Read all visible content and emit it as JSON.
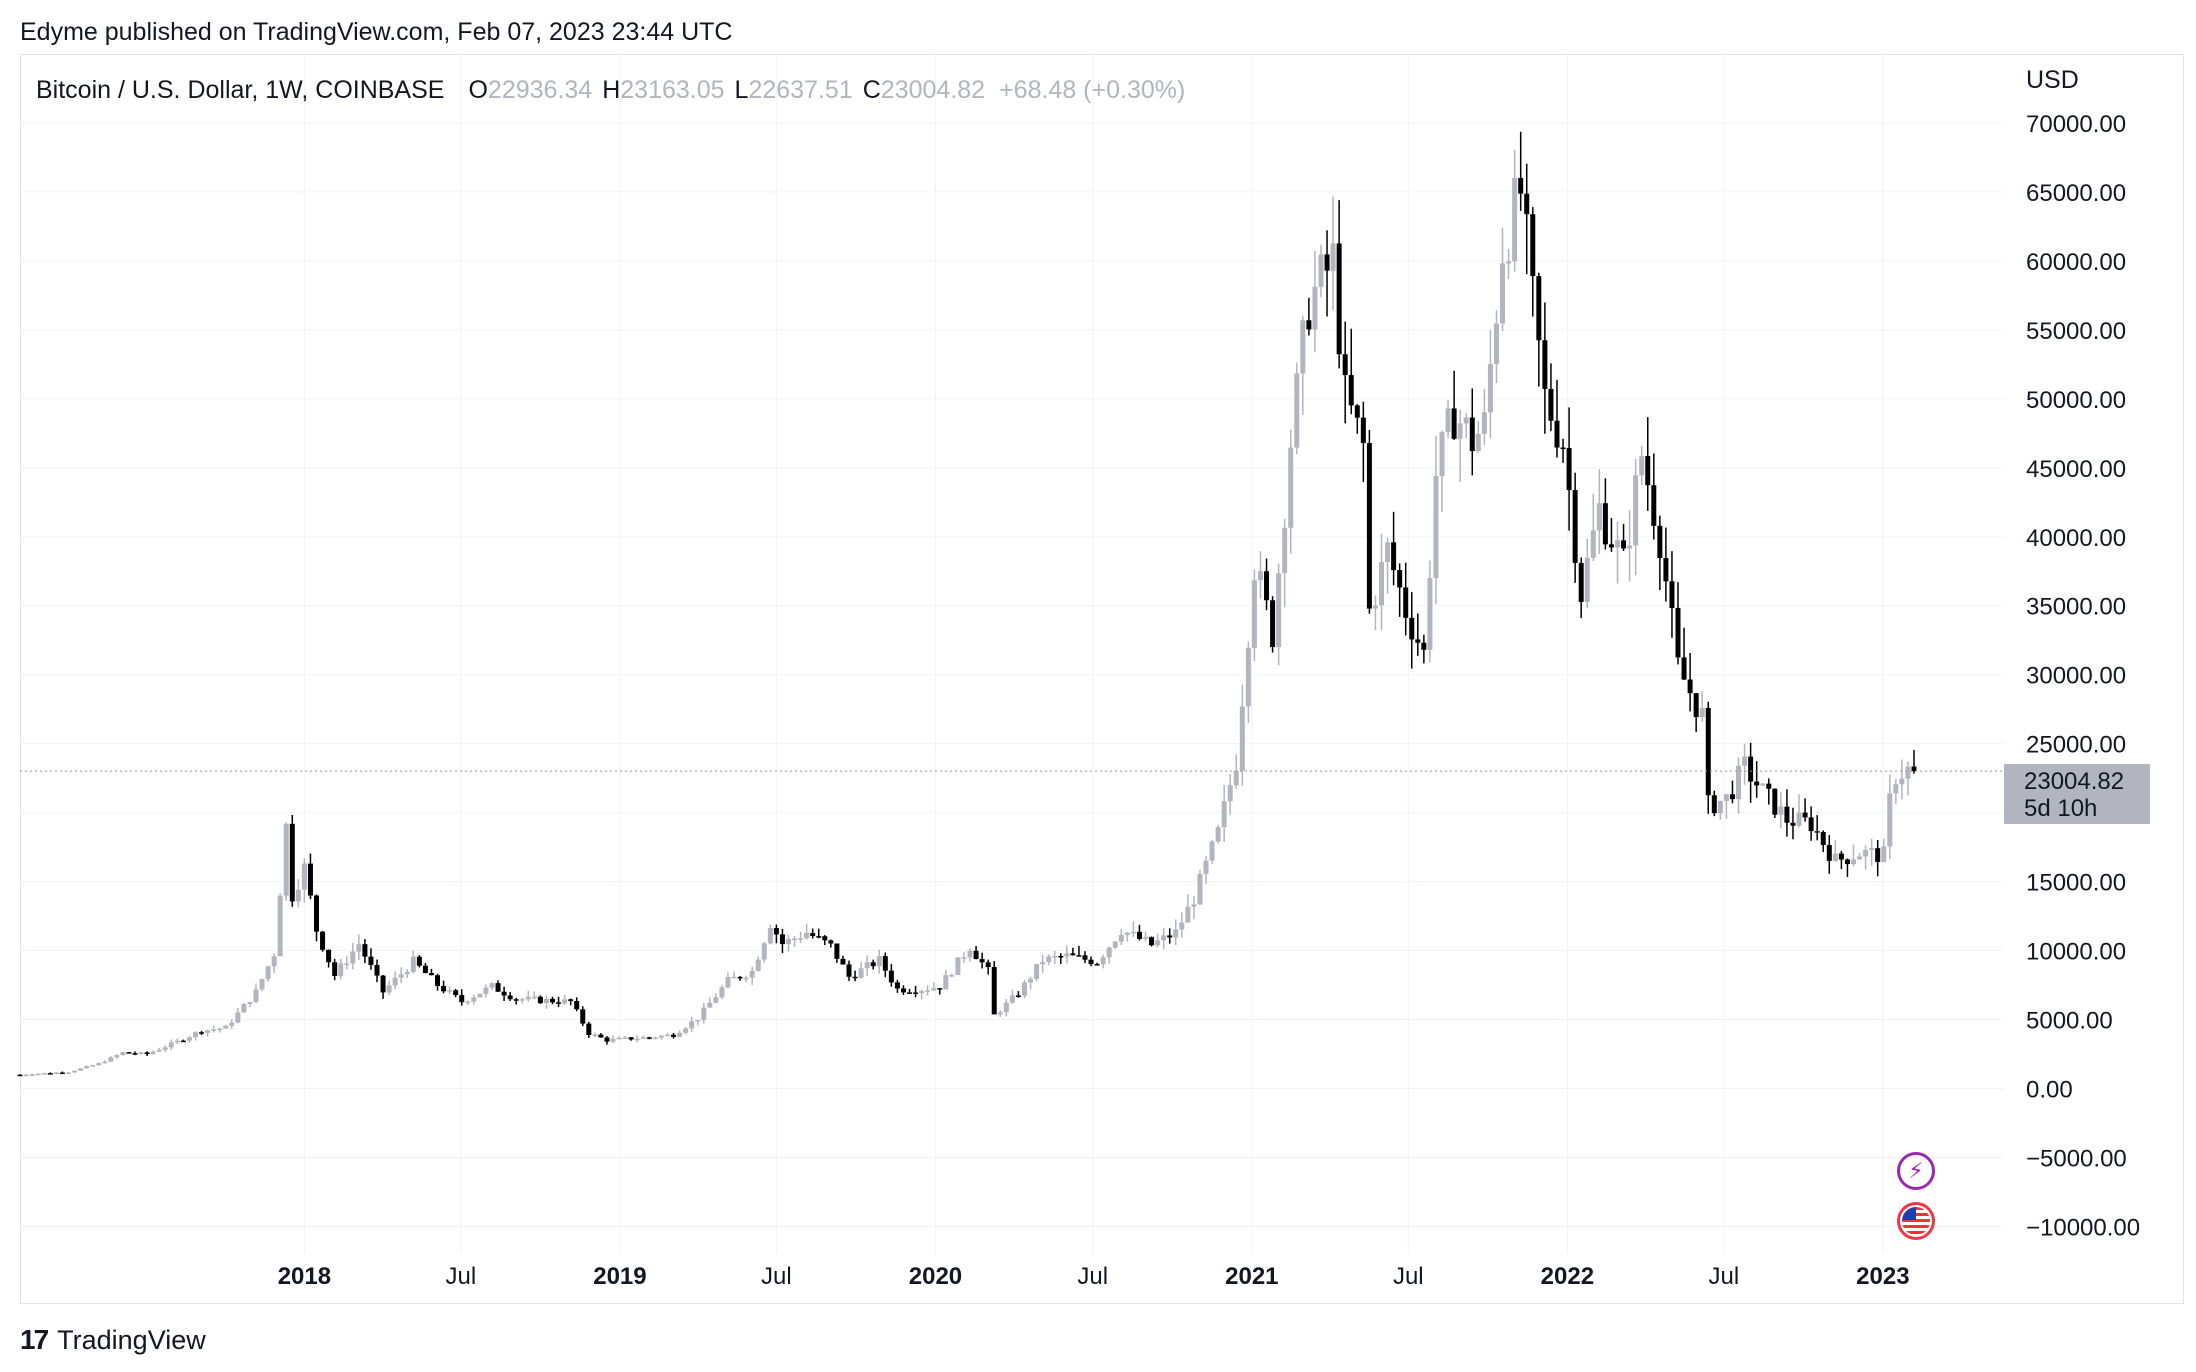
{
  "header": {
    "published_text": "Edyme published on TradingView.com, Feb 07, 2023 23:44 UTC"
  },
  "legend": {
    "symbol": "Bitcoin / U.S. Dollar, 1W, COINBASE",
    "open_label": "O",
    "open_value": "22936.34",
    "high_label": "H",
    "high_value": "23163.05",
    "low_label": "L",
    "low_value": "22637.51",
    "close_label": "C",
    "close_value": "23004.82",
    "change": "+68.48 (+0.30%)"
  },
  "price_scale": {
    "currency": "USD",
    "last_price_tag": "23004.82",
    "countdown_tag": "5d 10h"
  },
  "icons": {
    "lightning": "lightning-icon",
    "flag": "us-flag-icon"
  },
  "colors": {
    "up_candle": "#b2b5be",
    "down_candle": "#000000",
    "grid": "#f0f3fa",
    "price_tag_bg": "#b2b5be"
  },
  "footer": {
    "brand": "TradingView",
    "logo_text": "17"
  },
  "chart_data": {
    "type": "candlestick",
    "title": "Bitcoin / U.S. Dollar, 1W, COINBASE",
    "xlabel": "",
    "ylabel": "USD",
    "ylim": [
      -12000,
      75000
    ],
    "y_ticks": [
      "70000.00",
      "65000.00",
      "60000.00",
      "55000.00",
      "50000.00",
      "45000.00",
      "40000.00",
      "35000.00",
      "30000.00",
      "25000.00",
      "20000.00",
      "15000.00",
      "10000.00",
      "5000.00",
      "0.00",
      "−5000.00",
      "−10000.00"
    ],
    "y_tick_values": [
      70000,
      65000,
      60000,
      55000,
      50000,
      45000,
      40000,
      35000,
      30000,
      25000,
      20000,
      15000,
      10000,
      5000,
      0,
      -5000,
      -10000
    ],
    "x_ticks": [
      {
        "label": "2018",
        "date": "2018-01-01",
        "bold": true
      },
      {
        "label": "Jul",
        "date": "2018-07-01",
        "bold": false
      },
      {
        "label": "2019",
        "date": "2019-01-01",
        "bold": true
      },
      {
        "label": "Jul",
        "date": "2019-07-01",
        "bold": false
      },
      {
        "label": "2020",
        "date": "2020-01-01",
        "bold": true
      },
      {
        "label": "Jul",
        "date": "2020-07-01",
        "bold": false
      },
      {
        "label": "2021",
        "date": "2021-01-01",
        "bold": true
      },
      {
        "label": "Jul",
        "date": "2021-07-01",
        "bold": false
      },
      {
        "label": "2022",
        "date": "2022-01-01",
        "bold": true
      },
      {
        "label": "Jul",
        "date": "2022-07-01",
        "bold": false
      },
      {
        "label": "2023",
        "date": "2023-01-01",
        "bold": true
      }
    ],
    "x_start": "2017-02-06",
    "x_end": "2023-02-06",
    "last_close": 23004.82,
    "grid": true,
    "close_path": [
      {
        "date": "2017-02-06",
        "close": 1000
      },
      {
        "date": "2017-03-06",
        "close": 1100
      },
      {
        "date": "2017-04-03",
        "close": 1200
      },
      {
        "date": "2017-05-08",
        "close": 1800
      },
      {
        "date": "2017-06-05",
        "close": 2600
      },
      {
        "date": "2017-07-03",
        "close": 2500
      },
      {
        "date": "2017-08-07",
        "close": 3400
      },
      {
        "date": "2017-09-04",
        "close": 4200
      },
      {
        "date": "2017-10-02",
        "close": 4400
      },
      {
        "date": "2017-11-06",
        "close": 7000
      },
      {
        "date": "2017-11-27",
        "close": 9800
      },
      {
        "date": "2017-12-11",
        "close": 19000
      },
      {
        "date": "2017-12-18",
        "close": 14000
      },
      {
        "date": "2018-01-01",
        "close": 16000
      },
      {
        "date": "2018-01-15",
        "close": 11500
      },
      {
        "date": "2018-02-05",
        "close": 8200
      },
      {
        "date": "2018-03-05",
        "close": 10500
      },
      {
        "date": "2018-04-02",
        "close": 7000
      },
      {
        "date": "2018-05-07",
        "close": 9200
      },
      {
        "date": "2018-06-04",
        "close": 7500
      },
      {
        "date": "2018-07-02",
        "close": 6300
      },
      {
        "date": "2018-08-06",
        "close": 7400
      },
      {
        "date": "2018-09-03",
        "close": 6500
      },
      {
        "date": "2018-10-01",
        "close": 6400
      },
      {
        "date": "2018-11-05",
        "close": 6300
      },
      {
        "date": "2018-11-26",
        "close": 4000
      },
      {
        "date": "2018-12-17",
        "close": 3500
      },
      {
        "date": "2019-01-07",
        "close": 3600
      },
      {
        "date": "2019-02-04",
        "close": 3700
      },
      {
        "date": "2019-03-04",
        "close": 3900
      },
      {
        "date": "2019-04-01",
        "close": 5100
      },
      {
        "date": "2019-05-06",
        "close": 7800
      },
      {
        "date": "2019-06-03",
        "close": 8500
      },
      {
        "date": "2019-06-24",
        "close": 12000
      },
      {
        "date": "2019-07-08",
        "close": 10500
      },
      {
        "date": "2019-08-05",
        "close": 11300
      },
      {
        "date": "2019-09-02",
        "close": 10300
      },
      {
        "date": "2019-09-23",
        "close": 8100
      },
      {
        "date": "2019-10-28",
        "close": 9300
      },
      {
        "date": "2019-11-18",
        "close": 7200
      },
      {
        "date": "2019-12-16",
        "close": 7200
      },
      {
        "date": "2020-01-06",
        "close": 7400
      },
      {
        "date": "2020-02-10",
        "close": 10300
      },
      {
        "date": "2020-03-02",
        "close": 8500
      },
      {
        "date": "2020-03-09",
        "close": 5300
      },
      {
        "date": "2020-04-06",
        "close": 6900
      },
      {
        "date": "2020-05-04",
        "close": 9300
      },
      {
        "date": "2020-06-01",
        "close": 9600
      },
      {
        "date": "2020-07-06",
        "close": 9200
      },
      {
        "date": "2020-08-03",
        "close": 11500
      },
      {
        "date": "2020-09-07",
        "close": 10400
      },
      {
        "date": "2020-10-05",
        "close": 11300
      },
      {
        "date": "2020-10-26",
        "close": 13800
      },
      {
        "date": "2020-11-23",
        "close": 18500
      },
      {
        "date": "2020-12-14",
        "close": 23800
      },
      {
        "date": "2021-01-04",
        "close": 38000
      },
      {
        "date": "2021-01-25",
        "close": 33000
      },
      {
        "date": "2021-02-15",
        "close": 47000
      },
      {
        "date": "2021-03-08",
        "close": 57000
      },
      {
        "date": "2021-04-05",
        "close": 60000
      },
      {
        "date": "2021-04-19",
        "close": 50000
      },
      {
        "date": "2021-05-10",
        "close": 46500
      },
      {
        "date": "2021-05-17",
        "close": 34600
      },
      {
        "date": "2021-06-07",
        "close": 39000
      },
      {
        "date": "2021-06-28",
        "close": 34700
      },
      {
        "date": "2021-07-19",
        "close": 31500
      },
      {
        "date": "2021-08-02",
        "close": 44500
      },
      {
        "date": "2021-08-23",
        "close": 49000
      },
      {
        "date": "2021-09-13",
        "close": 47000
      },
      {
        "date": "2021-09-27",
        "close": 48000
      },
      {
        "date": "2021-10-18",
        "close": 61000
      },
      {
        "date": "2021-11-08",
        "close": 65000
      },
      {
        "date": "2021-11-22",
        "close": 57000
      },
      {
        "date": "2021-12-06",
        "close": 50000
      },
      {
        "date": "2021-12-27",
        "close": 47000
      },
      {
        "date": "2022-01-17",
        "close": 36000
      },
      {
        "date": "2022-02-07",
        "close": 42000
      },
      {
        "date": "2022-03-07",
        "close": 38000
      },
      {
        "date": "2022-03-28",
        "close": 46000
      },
      {
        "date": "2022-04-18",
        "close": 40000
      },
      {
        "date": "2022-05-09",
        "close": 30500
      },
      {
        "date": "2022-06-06",
        "close": 27000
      },
      {
        "date": "2022-06-13",
        "close": 20500
      },
      {
        "date": "2022-07-04",
        "close": 21000
      },
      {
        "date": "2022-07-25",
        "close": 23300
      },
      {
        "date": "2022-08-15",
        "close": 21500
      },
      {
        "date": "2022-09-12",
        "close": 19500
      },
      {
        "date": "2022-10-10",
        "close": 19200
      },
      {
        "date": "2022-11-07",
        "close": 16500
      },
      {
        "date": "2022-12-05",
        "close": 17100
      },
      {
        "date": "2023-01-02",
        "close": 16900
      },
      {
        "date": "2023-01-09",
        "close": 20800
      },
      {
        "date": "2023-01-16",
        "close": 22700
      },
      {
        "date": "2023-01-30",
        "close": 23100
      },
      {
        "date": "2023-02-06",
        "close": 23004.82
      }
    ]
  }
}
